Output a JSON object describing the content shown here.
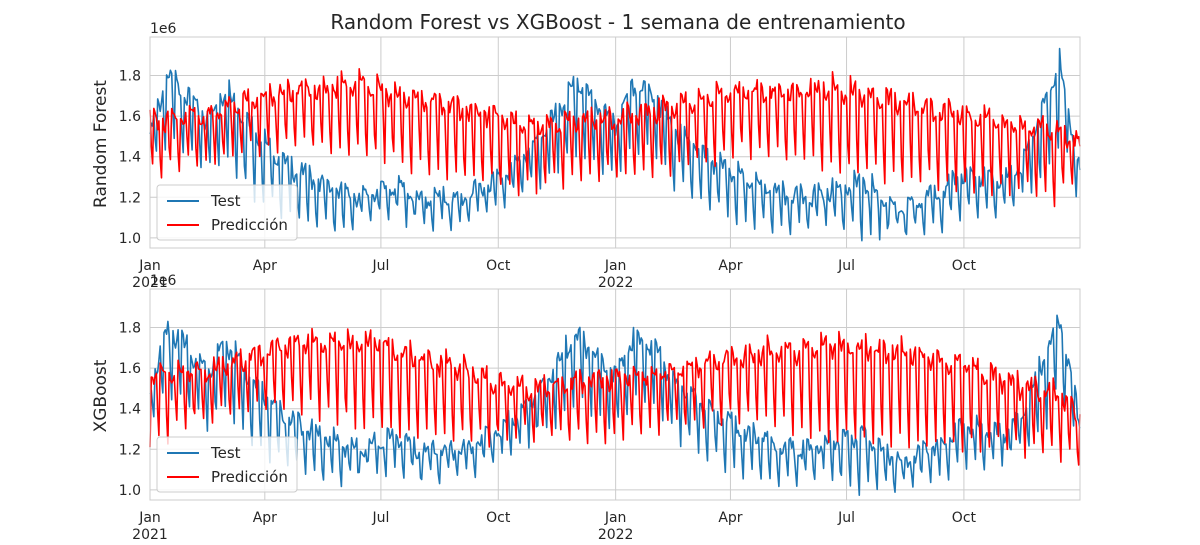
{
  "title": "Random Forest vs XGBoost - 1 semana de entrenamiento",
  "colors": {
    "test": "#1f77b4",
    "prediction": "#ff0000",
    "grid": "#cccccc"
  },
  "chart_data": [
    {
      "type": "line",
      "ylabel": "Random Forest",
      "offset_label": "1e6",
      "xlim": [
        "2021-01-01",
        "2022-12-31"
      ],
      "ylim": [
        0.95,
        1.99
      ],
      "yticks": [
        1.0,
        1.2,
        1.4,
        1.6,
        1.8
      ],
      "ytick_labels": [
        "1.0",
        "1.2",
        "1.4",
        "1.6",
        "1.8"
      ],
      "xticks": [
        {
          "date": "2021-01-01",
          "label": "Jan",
          "sub": "2021"
        },
        {
          "date": "2021-04-01",
          "label": "Apr",
          "sub": ""
        },
        {
          "date": "2021-07-01",
          "label": "Jul",
          "sub": ""
        },
        {
          "date": "2021-10-01",
          "label": "Oct",
          "sub": ""
        },
        {
          "date": "2022-01-01",
          "label": "Jan",
          "sub": "2022"
        },
        {
          "date": "2022-04-01",
          "label": "Apr",
          "sub": ""
        },
        {
          "date": "2022-07-01",
          "label": "Jul",
          "sub": ""
        },
        {
          "date": "2022-10-01",
          "label": "Oct",
          "sub": ""
        }
      ],
      "legend": {
        "position": "lower-left",
        "entries": [
          "Test",
          "Predicción"
        ]
      },
      "series": [
        {
          "name": "Test",
          "x": [
            "2021-01-01",
            "2021-01-15",
            "2021-02-01",
            "2021-02-15",
            "2021-03-01",
            "2021-03-15",
            "2021-04-01",
            "2021-04-15",
            "2021-05-01",
            "2021-05-15",
            "2021-06-01",
            "2021-06-15",
            "2021-07-01",
            "2021-07-15",
            "2021-08-01",
            "2021-08-15",
            "2021-09-01",
            "2021-09-15",
            "2021-10-01",
            "2021-10-15",
            "2021-11-01",
            "2021-11-15",
            "2021-12-01",
            "2021-12-15",
            "2022-01-01",
            "2022-01-15",
            "2022-02-01",
            "2022-02-15",
            "2022-03-01",
            "2022-03-15",
            "2022-04-01",
            "2022-04-15",
            "2022-05-01",
            "2022-05-15",
            "2022-06-01",
            "2022-06-15",
            "2022-07-01",
            "2022-07-15",
            "2022-08-01",
            "2022-08-15",
            "2022-09-01",
            "2022-09-15",
            "2022-10-01",
            "2022-10-15",
            "2022-11-01",
            "2022-11-15",
            "2022-12-01",
            "2022-12-15",
            "2022-12-31"
          ],
          "values": [
            1.55,
            1.85,
            1.74,
            1.62,
            1.79,
            1.66,
            1.52,
            1.42,
            1.36,
            1.32,
            1.26,
            1.24,
            1.28,
            1.3,
            1.22,
            1.24,
            1.22,
            1.28,
            1.34,
            1.41,
            1.52,
            1.66,
            1.82,
            1.73,
            1.62,
            1.8,
            1.76,
            1.58,
            1.52,
            1.44,
            1.38,
            1.32,
            1.28,
            1.25,
            1.24,
            1.27,
            1.3,
            1.33,
            1.22,
            1.17,
            1.24,
            1.28,
            1.36,
            1.34,
            1.31,
            1.4,
            1.68,
            1.91,
            1.36
          ],
          "low": [
            1.38,
            1.52,
            1.45,
            1.36,
            1.44,
            1.3,
            1.2,
            1.16,
            1.12,
            1.08,
            1.07,
            1.12,
            1.12,
            1.14,
            1.08,
            1.1,
            1.1,
            1.14,
            1.18,
            1.24,
            1.3,
            1.34,
            1.46,
            1.4,
            1.32,
            1.48,
            1.45,
            1.3,
            1.26,
            1.18,
            1.14,
            1.1,
            1.08,
            1.06,
            1.1,
            1.12,
            1.08,
            1.02,
            1.06,
            1.05,
            1.08,
            1.1,
            1.16,
            1.14,
            1.18,
            1.24,
            1.3,
            1.52,
            1.22
          ]
        },
        {
          "name": "Predicción",
          "x": [
            "2021-01-01",
            "2021-01-15",
            "2021-02-01",
            "2021-02-15",
            "2021-03-01",
            "2021-03-15",
            "2021-04-01",
            "2021-04-15",
            "2021-05-01",
            "2021-05-15",
            "2021-06-01",
            "2021-06-15",
            "2021-07-01",
            "2021-07-15",
            "2021-08-01",
            "2021-08-15",
            "2021-09-01",
            "2021-09-15",
            "2021-10-01",
            "2021-10-15",
            "2021-11-01",
            "2021-11-15",
            "2021-12-01",
            "2021-12-15",
            "2022-01-01",
            "2022-01-15",
            "2022-02-01",
            "2022-02-15",
            "2022-03-01",
            "2022-03-15",
            "2022-04-01",
            "2022-04-15",
            "2022-05-01",
            "2022-05-15",
            "2022-06-01",
            "2022-06-15",
            "2022-07-01",
            "2022-07-15",
            "2022-08-01",
            "2022-08-15",
            "2022-09-01",
            "2022-09-15",
            "2022-10-01",
            "2022-10-15",
            "2022-11-01",
            "2022-11-15",
            "2022-12-01",
            "2022-12-15",
            "2022-12-31"
          ],
          "values": [
            1.64,
            1.62,
            1.66,
            1.64,
            1.7,
            1.72,
            1.75,
            1.76,
            1.77,
            1.78,
            1.8,
            1.82,
            1.78,
            1.76,
            1.74,
            1.72,
            1.7,
            1.68,
            1.66,
            1.62,
            1.6,
            1.6,
            1.63,
            1.64,
            1.64,
            1.66,
            1.68,
            1.7,
            1.72,
            1.74,
            1.76,
            1.77,
            1.78,
            1.76,
            1.78,
            1.8,
            1.78,
            1.76,
            1.74,
            1.72,
            1.7,
            1.68,
            1.66,
            1.64,
            1.62,
            1.6,
            1.6,
            1.58,
            1.52
          ],
          "low": [
            1.34,
            1.36,
            1.42,
            1.4,
            1.44,
            1.46,
            1.48,
            1.48,
            1.5,
            1.48,
            1.46,
            1.44,
            1.42,
            1.4,
            1.38,
            1.36,
            1.34,
            1.32,
            1.3,
            1.28,
            1.28,
            1.3,
            1.32,
            1.34,
            1.34,
            1.34,
            1.36,
            1.38,
            1.4,
            1.42,
            1.44,
            1.46,
            1.46,
            1.44,
            1.42,
            1.4,
            1.38,
            1.36,
            1.34,
            1.32,
            1.32,
            1.3,
            1.3,
            1.28,
            1.26,
            1.26,
            1.24,
            1.22,
            1.38
          ]
        }
      ]
    },
    {
      "type": "line",
      "ylabel": "XGBoost",
      "offset_label": "1e6",
      "xlim": [
        "2021-01-01",
        "2022-12-31"
      ],
      "ylim": [
        0.95,
        1.99
      ],
      "yticks": [
        1.0,
        1.2,
        1.4,
        1.6,
        1.8
      ],
      "ytick_labels": [
        "1.0",
        "1.2",
        "1.4",
        "1.6",
        "1.8"
      ],
      "xticks": [
        {
          "date": "2021-01-01",
          "label": "Jan",
          "sub": "2021"
        },
        {
          "date": "2021-04-01",
          "label": "Apr",
          "sub": ""
        },
        {
          "date": "2021-07-01",
          "label": "Jul",
          "sub": ""
        },
        {
          "date": "2021-10-01",
          "label": "Oct",
          "sub": ""
        },
        {
          "date": "2022-01-01",
          "label": "Jan",
          "sub": "2022"
        },
        {
          "date": "2022-04-01",
          "label": "Apr",
          "sub": ""
        },
        {
          "date": "2022-07-01",
          "label": "Jul",
          "sub": ""
        },
        {
          "date": "2022-10-01",
          "label": "Oct",
          "sub": ""
        }
      ],
      "legend": {
        "position": "lower-left",
        "entries": [
          "Test",
          "Predicción"
        ]
      },
      "series": [
        {
          "name": "Test",
          "x": [
            "2021-01-01",
            "2021-01-15",
            "2021-02-01",
            "2021-02-15",
            "2021-03-01",
            "2021-03-15",
            "2021-04-01",
            "2021-04-15",
            "2021-05-01",
            "2021-05-15",
            "2021-06-01",
            "2021-06-15",
            "2021-07-01",
            "2021-07-15",
            "2021-08-01",
            "2021-08-15",
            "2021-09-01",
            "2021-09-15",
            "2021-10-01",
            "2021-10-15",
            "2021-11-01",
            "2021-11-15",
            "2021-12-01",
            "2021-12-15",
            "2022-01-01",
            "2022-01-15",
            "2022-02-01",
            "2022-02-15",
            "2022-03-01",
            "2022-03-15",
            "2022-04-01",
            "2022-04-15",
            "2022-05-01",
            "2022-05-15",
            "2022-06-01",
            "2022-06-15",
            "2022-07-01",
            "2022-07-15",
            "2022-08-01",
            "2022-08-15",
            "2022-09-01",
            "2022-09-15",
            "2022-10-01",
            "2022-10-15",
            "2022-11-01",
            "2022-11-15",
            "2022-12-01",
            "2022-12-15",
            "2022-12-31"
          ],
          "values": [
            1.55,
            1.85,
            1.74,
            1.62,
            1.79,
            1.66,
            1.52,
            1.42,
            1.36,
            1.32,
            1.26,
            1.24,
            1.28,
            1.3,
            1.22,
            1.24,
            1.22,
            1.28,
            1.34,
            1.41,
            1.52,
            1.66,
            1.82,
            1.73,
            1.62,
            1.8,
            1.76,
            1.58,
            1.52,
            1.44,
            1.38,
            1.32,
            1.28,
            1.25,
            1.24,
            1.27,
            1.3,
            1.33,
            1.22,
            1.17,
            1.24,
            1.28,
            1.36,
            1.34,
            1.31,
            1.4,
            1.68,
            1.91,
            1.36
          ],
          "low": [
            1.38,
            1.52,
            1.45,
            1.36,
            1.44,
            1.3,
            1.2,
            1.16,
            1.12,
            1.08,
            1.07,
            1.12,
            1.12,
            1.14,
            1.08,
            1.1,
            1.1,
            1.14,
            1.18,
            1.24,
            1.3,
            1.34,
            1.46,
            1.4,
            1.32,
            1.48,
            1.45,
            1.3,
            1.26,
            1.18,
            1.14,
            1.1,
            1.08,
            1.06,
            1.1,
            1.12,
            1.08,
            1.02,
            1.06,
            1.05,
            1.08,
            1.1,
            1.16,
            1.14,
            1.18,
            1.24,
            1.3,
            1.52,
            1.22
          ]
        },
        {
          "name": "Predicción",
          "x": [
            "2021-01-01",
            "2021-01-15",
            "2021-02-01",
            "2021-02-15",
            "2021-03-01",
            "2021-03-15",
            "2021-04-01",
            "2021-04-15",
            "2021-05-01",
            "2021-05-15",
            "2021-06-01",
            "2021-06-15",
            "2021-07-01",
            "2021-07-15",
            "2021-08-01",
            "2021-08-15",
            "2021-09-01",
            "2021-09-15",
            "2021-10-01",
            "2021-10-15",
            "2021-11-01",
            "2021-11-15",
            "2021-12-01",
            "2021-12-15",
            "2022-01-01",
            "2022-01-15",
            "2022-02-01",
            "2022-02-15",
            "2022-03-01",
            "2022-03-15",
            "2022-04-01",
            "2022-04-15",
            "2022-05-01",
            "2022-05-15",
            "2022-06-01",
            "2022-06-15",
            "2022-07-01",
            "2022-07-15",
            "2022-08-01",
            "2022-08-15",
            "2022-09-01",
            "2022-09-15",
            "2022-10-01",
            "2022-10-15",
            "2022-11-01",
            "2022-11-15",
            "2022-12-01",
            "2022-12-15",
            "2022-12-31"
          ],
          "values": [
            1.62,
            1.62,
            1.64,
            1.62,
            1.66,
            1.68,
            1.74,
            1.76,
            1.78,
            1.78,
            1.78,
            1.78,
            1.8,
            1.74,
            1.7,
            1.68,
            1.66,
            1.62,
            1.58,
            1.56,
            1.54,
            1.56,
            1.58,
            1.6,
            1.6,
            1.62,
            1.62,
            1.64,
            1.66,
            1.68,
            1.7,
            1.72,
            1.74,
            1.74,
            1.76,
            1.78,
            1.78,
            1.76,
            1.74,
            1.74,
            1.72,
            1.7,
            1.68,
            1.64,
            1.6,
            1.56,
            1.54,
            1.52,
            1.4
          ],
          "low": [
            1.26,
            1.3,
            1.36,
            1.38,
            1.4,
            1.42,
            1.44,
            1.44,
            1.44,
            1.4,
            1.38,
            1.36,
            1.34,
            1.32,
            1.3,
            1.3,
            1.28,
            1.28,
            1.28,
            1.3,
            1.3,
            1.3,
            1.3,
            1.28,
            1.3,
            1.3,
            1.32,
            1.34,
            1.36,
            1.38,
            1.38,
            1.38,
            1.36,
            1.34,
            1.32,
            1.3,
            1.28,
            1.28,
            1.28,
            1.28,
            1.26,
            1.26,
            1.26,
            1.24,
            1.24,
            1.22,
            1.22,
            1.2,
            1.17
          ]
        }
      ]
    }
  ]
}
